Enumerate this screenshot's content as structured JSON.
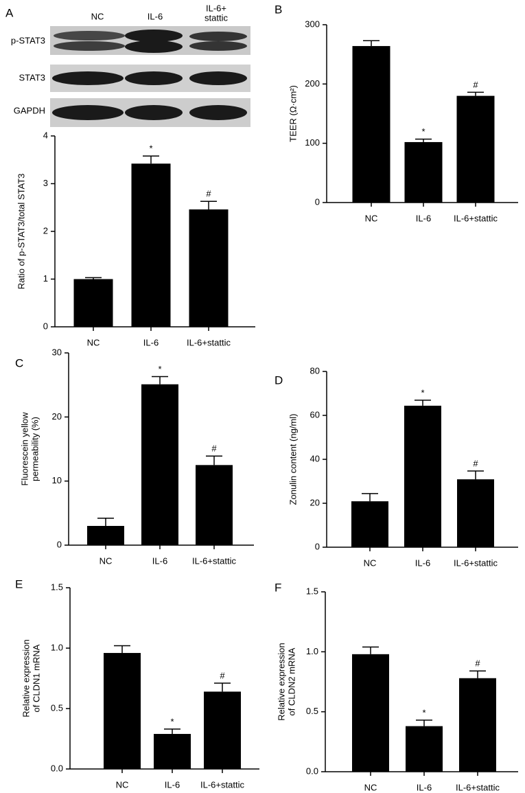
{
  "blot": {
    "columns": [
      [
        "NC"
      ],
      [
        "IL-6"
      ],
      [
        "IL-6+",
        "stattic"
      ]
    ],
    "rows": [
      "p-STAT3",
      "STAT3",
      "GAPDH"
    ]
  },
  "chart_data": [
    {
      "type": "bar",
      "panel": "A",
      "ylabel": [
        "Ratio of p-STAT3/total STAT3"
      ],
      "categories": [
        "NC",
        "IL-6",
        "IL-6+stattic"
      ],
      "values": [
        1.0,
        3.42,
        2.46
      ],
      "errors": [
        0.03,
        0.16,
        0.17
      ],
      "annotations": [
        null,
        "*",
        "#"
      ],
      "color": "#000000",
      "ylim": [
        0,
        4
      ],
      "yticks": [
        0,
        1,
        2,
        3,
        4
      ]
    },
    {
      "type": "bar",
      "panel": "B",
      "ylabel": [
        "TEER (Ω·cm²)"
      ],
      "categories": [
        "NC",
        "IL-6",
        "IL-6+stattic"
      ],
      "values": [
        264,
        102,
        180
      ],
      "errors": [
        9,
        5,
        6
      ],
      "annotations": [
        null,
        "*",
        "#"
      ],
      "color": "#000000",
      "ylim": [
        0,
        300
      ],
      "yticks": [
        0,
        100,
        200,
        300
      ]
    },
    {
      "type": "bar",
      "panel": "C",
      "ylabel": [
        "Fluorescein yellow",
        "permeability (%)"
      ],
      "categories": [
        "NC",
        "IL-6",
        "IL-6+stattic"
      ],
      "values": [
        3.0,
        25.1,
        12.5
      ],
      "errors": [
        1.2,
        1.2,
        1.4
      ],
      "annotations": [
        null,
        "*",
        "#"
      ],
      "color": "#000000",
      "ylim": [
        0,
        30
      ],
      "yticks": [
        0,
        10,
        20,
        30
      ]
    },
    {
      "type": "bar",
      "panel": "D",
      "ylabel": [
        "Zonulin content (ng/ml)"
      ],
      "categories": [
        "NC",
        "IL-6",
        "IL-6+stattic"
      ],
      "values": [
        20.9,
        64.4,
        30.9
      ],
      "errors": [
        3.5,
        2.5,
        3.8
      ],
      "annotations": [
        null,
        "*",
        "#"
      ],
      "color": "#000000",
      "ylim": [
        0,
        80
      ],
      "yticks": [
        0,
        20,
        40,
        60,
        80
      ]
    },
    {
      "type": "bar",
      "panel": "E",
      "ylabel": [
        "Relative expression",
        "of CLDN1 mRNA"
      ],
      "categories": [
        "NC",
        "IL-6",
        "IL-6+stattic"
      ],
      "values": [
        0.96,
        0.29,
        0.64
      ],
      "errors": [
        0.06,
        0.04,
        0.07
      ],
      "annotations": [
        null,
        "*",
        "#"
      ],
      "color": "#000000",
      "ylim": [
        0,
        1.5
      ],
      "yticks": [
        {
          "value": 0,
          "label": "0.0"
        },
        0.5,
        {
          "value": 1,
          "label": "1.0"
        },
        1.5
      ]
    },
    {
      "type": "bar",
      "panel": "F",
      "ylabel": [
        "Relative expression",
        "of CLDN2 mRNA"
      ],
      "categories": [
        "NC",
        "IL-6",
        "IL-6+stattic"
      ],
      "values": [
        0.98,
        0.38,
        0.78
      ],
      "errors": [
        0.06,
        0.05,
        0.06
      ],
      "annotations": [
        null,
        "*",
        "#"
      ],
      "color": "#000000",
      "ylim": [
        0,
        1.5
      ],
      "yticks": [
        {
          "value": 0,
          "label": "0.0"
        },
        0.5,
        {
          "value": 1,
          "label": "1.0"
        },
        1.5
      ]
    }
  ]
}
